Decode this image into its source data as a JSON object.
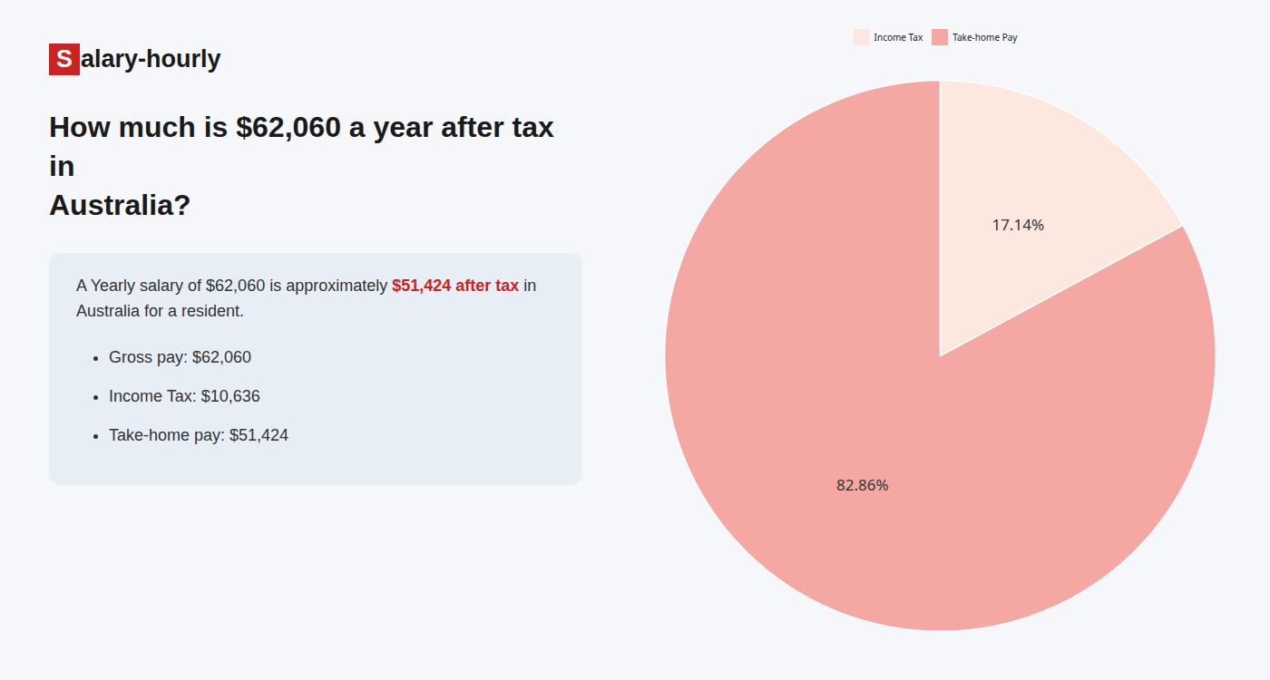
{
  "chart_data": {
    "type": "pie",
    "title": "How much is $62,060 a year after tax in\nAustralia?",
    "categories": [
      "Income Tax",
      "Take-home Pay"
    ],
    "values": [
      17.14,
      82.86
    ],
    "value_labels": [
      "17.14%",
      "82.86%"
    ],
    "colors": [
      "#fde8e0",
      "#f5a8a3"
    ],
    "data_labels": true,
    "legend": "top",
    "annotations": [
      "S",
      "alary-hourly",
      "A Yearly salary of $62,060 is approximately ",
      "$51,424 after tax",
      " in",
      "Australia for a resident.",
      "Gross pay: $62,060",
      "Income Tax: $10,636",
      "Take-home pay: $51,424"
    ]
  }
}
